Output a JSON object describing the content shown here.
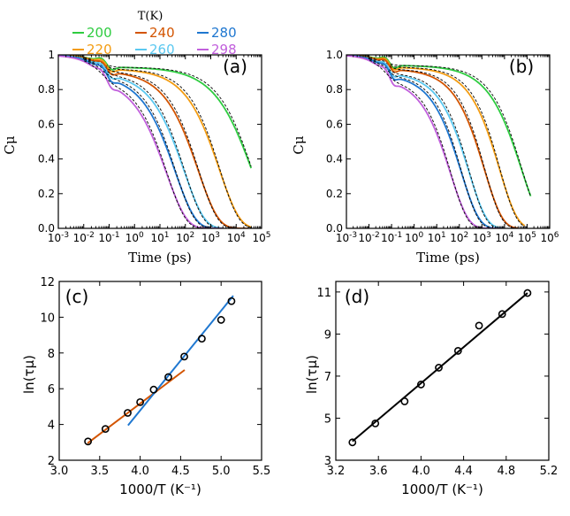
{
  "legend": {
    "title": "T(K)",
    "entries": [
      {
        "label": "200",
        "color": "#2ecc40"
      },
      {
        "label": "240",
        "color": "#d35400"
      },
      {
        "label": "280",
        "color": "#1f77d0"
      },
      {
        "label": "220",
        "color": "#f39c12"
      },
      {
        "label": "260",
        "color": "#5bc8f0"
      },
      {
        "label": "298",
        "color": "#c15fdc"
      }
    ]
  },
  "chart_data": [
    {
      "type": "line",
      "panel": "(a)",
      "xlabel": "Time (ps)",
      "ylabel": "Cμ",
      "xscale": "log",
      "xlim": [
        0.001,
        100000
      ],
      "ylim": [
        0.0,
        1.0
      ],
      "xticks": [
        "10^-3",
        "10^-2",
        "10^-1",
        "10^0",
        "10^1",
        "10^2",
        "10^3",
        "10^4",
        "10^5"
      ],
      "yticks": [
        "0.0",
        "0.2",
        "0.4",
        "0.6",
        "0.8",
        "1"
      ],
      "fit_style": "dashed black",
      "series": [
        {
          "name": "200",
          "color": "#2ecc40",
          "tau": 40000,
          "beta": 0.5,
          "plateau": 0.93,
          "end": 40000
        },
        {
          "name": "220",
          "color": "#f39c12",
          "tau": 2200,
          "beta": 0.55,
          "plateau": 0.92,
          "end": 40000
        },
        {
          "name": "240",
          "color": "#d35400",
          "tau": 320,
          "beta": 0.55,
          "plateau": 0.91,
          "end": 30000
        },
        {
          "name": "260",
          "color": "#5bc8f0",
          "tau": 90,
          "beta": 0.55,
          "plateau": 0.9,
          "end": 3000
        },
        {
          "name": "280",
          "color": "#1f77d0",
          "tau": 40,
          "beta": 0.55,
          "plateau": 0.89,
          "end": 3000
        },
        {
          "name": "298",
          "color": "#c15fdc",
          "tau": 18,
          "beta": 0.55,
          "plateau": 0.87,
          "end": 3000
        }
      ]
    },
    {
      "type": "line",
      "panel": "(b)",
      "xlabel": "Time (ps)",
      "ylabel": "Cμ",
      "xscale": "log",
      "xlim": [
        0.001,
        1000000
      ],
      "ylim": [
        0.0,
        1.0
      ],
      "xticks": [
        "10^-3",
        "10^-2",
        "10^-1",
        "10^0",
        "10^1",
        "10^2",
        "10^3",
        "10^4",
        "10^5",
        "10^6"
      ],
      "yticks": [
        "0.0",
        "0.2",
        "0.4",
        "0.6",
        "0.8",
        "1.0"
      ],
      "fit_style": "dashed black",
      "series": [
        {
          "name": "200",
          "color": "#2ecc40",
          "tau": 55000,
          "beta": 0.5,
          "plateau": 0.94,
          "end": 150000
        },
        {
          "name": "220",
          "color": "#f39c12",
          "tau": 6000,
          "beta": 0.55,
          "plateau": 0.93,
          "end": 80000
        },
        {
          "name": "240",
          "color": "#d35400",
          "tau": 1300,
          "beta": 0.55,
          "plateau": 0.92,
          "end": 40000
        },
        {
          "name": "260",
          "color": "#5bc8f0",
          "tau": 260,
          "beta": 0.55,
          "plateau": 0.9,
          "end": 8000
        },
        {
          "name": "280",
          "color": "#1f77d0",
          "tau": 120,
          "beta": 0.55,
          "plateau": 0.89,
          "end": 8000
        },
        {
          "name": "298",
          "color": "#c15fdc",
          "tau": 40,
          "beta": 0.55,
          "plateau": 0.87,
          "end": 8000
        }
      ]
    },
    {
      "type": "scatter",
      "panel": "(c)",
      "xlabel": "1000/T (K⁻¹)",
      "ylabel": "ln(τμ)",
      "xlim": [
        3.0,
        5.5
      ],
      "ylim": [
        2,
        12
      ],
      "xticks": [
        "3.0",
        "3.5",
        "4.0",
        "4.5",
        "5.0",
        "5.5"
      ],
      "yticks": [
        "2",
        "4",
        "6",
        "8",
        "10",
        "12"
      ],
      "x": [
        3.356,
        3.571,
        3.846,
        4.0,
        4.167,
        4.348,
        4.545,
        4.762,
        5.0,
        5.128
      ],
      "y": [
        3.05,
        3.75,
        4.65,
        5.25,
        5.95,
        6.65,
        7.8,
        8.8,
        9.85,
        10.9
      ],
      "fit_lines": [
        {
          "color": "#d35400",
          "x": [
            3.35,
            4.55
          ],
          "y": [
            2.95,
            7.05
          ]
        },
        {
          "color": "#1f77d0",
          "x": [
            3.85,
            5.15
          ],
          "y": [
            3.95,
            11.2
          ]
        }
      ]
    },
    {
      "type": "scatter",
      "panel": "(d)",
      "xlabel": "1000/T (K⁻¹)",
      "ylabel": "ln(τμ)",
      "xlim": [
        3.2,
        5.2
      ],
      "ylim": [
        3,
        11.5
      ],
      "xticks": [
        "3.2",
        "3.6",
        "4.0",
        "4.4",
        "4.8",
        "5.2"
      ],
      "yticks": [
        "3",
        "5",
        "7",
        "9",
        "11"
      ],
      "x": [
        3.356,
        3.571,
        3.846,
        4.0,
        4.167,
        4.348,
        4.545,
        4.762,
        5.0
      ],
      "y": [
        3.85,
        4.75,
        5.8,
        6.6,
        7.4,
        8.2,
        9.4,
        9.95,
        10.95
      ],
      "fit_lines": [
        {
          "color": "#000000",
          "x": [
            3.356,
            5.0
          ],
          "y": [
            3.9,
            10.95
          ]
        }
      ]
    }
  ]
}
